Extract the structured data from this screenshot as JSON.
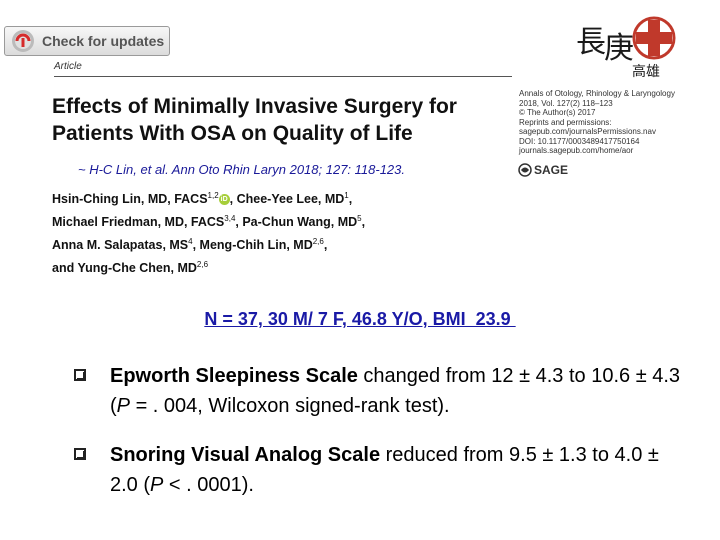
{
  "check_updates": {
    "label": "Check for updates",
    "icon": "check-updates-icon"
  },
  "article_label": "Article",
  "paper": {
    "title_line1": "Effects of Minimally Invasive Surgery for",
    "title_line2": "Patients With OSA on Quality of Life"
  },
  "citation": "~ H-C Lin, et al. Ann Oto Rhin Laryn 2018; 127: 118-123.",
  "journal_info": [
    "Annals of Otology, Rhinology & Laryngology",
    "2018, Vol. 127(2) 118–123",
    "© The Author(s) 2017",
    "Reprints and permissions:",
    "sagepub.com/journalsPermissions.nav",
    "DOI: 10.1177/0003489417750164",
    "journals.sagepub.com/home/aor"
  ],
  "publisher": "SAGE",
  "authors": {
    "line1": {
      "a": "Hsin-Ching Lin, MD, FACS",
      "a_sup": "1,2",
      "b": ", Chee-Yee Lee, MD",
      "b_sup": "1",
      "end": ","
    },
    "line2": {
      "a": "Michael Friedman, MD, FACS",
      "a_sup": "3,4",
      "b": ", Pa-Chun Wang, MD",
      "b_sup": "5",
      "end": ","
    },
    "line3": {
      "a": "Anna M. Salapatas, MS",
      "a_sup": "4",
      "b": ", Meng-Chih Lin, MD",
      "b_sup": "2,6",
      "end": ","
    },
    "line4": {
      "a": "and Yung-Che Chen, MD",
      "a_sup": "2,6"
    }
  },
  "hospital_logo": {
    "char1": "長",
    "char2": "庚",
    "subtitle": "高雄",
    "color": "#c0392b"
  },
  "sample_summary": "N = 37, 30 M/ 7 F, 46.8 Y/O, BMI  23.9 ",
  "bullets": [
    {
      "bold": "Epworth Sleepiness Scale",
      "text1": " changed from 12 ± 4.3 to 10.6 ± 4.3 (",
      "italic": "P",
      "text2": " = . 004, Wilcoxon signed-rank test)."
    },
    {
      "bold": "Snoring Visual Analog Scale",
      "text1": " reduced from 9.5 ± 1.3 to 4.0 ± 2.0 (",
      "italic": "P",
      "text2": " < . 0001)."
    }
  ],
  "colors": {
    "summary": "#1a1aa6",
    "citation": "#1a1a99",
    "orcid": "#a6ce39"
  }
}
